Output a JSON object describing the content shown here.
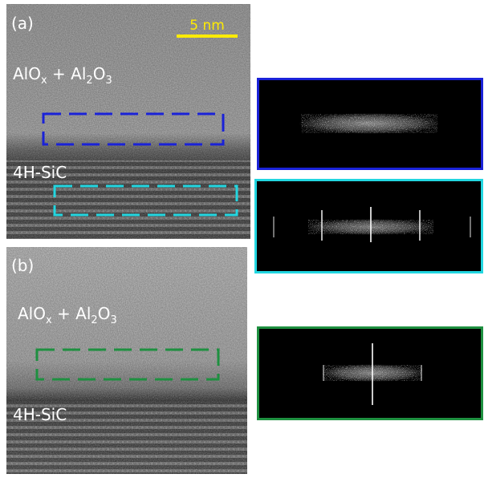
{
  "panels": [
    {
      "label": "(a)",
      "scale_bar": "5 nm",
      "layer_label": [
        "AlO",
        "x",
        " + Al",
        "2",
        "O",
        "3"
      ],
      "substrate_label": "4H-SiC"
    },
    {
      "label": "(b)",
      "layer_label": [
        "AlO",
        "x",
        " + Al",
        "2",
        "O",
        "3"
      ],
      "substrate_label": "4H-SiC"
    }
  ]
}
